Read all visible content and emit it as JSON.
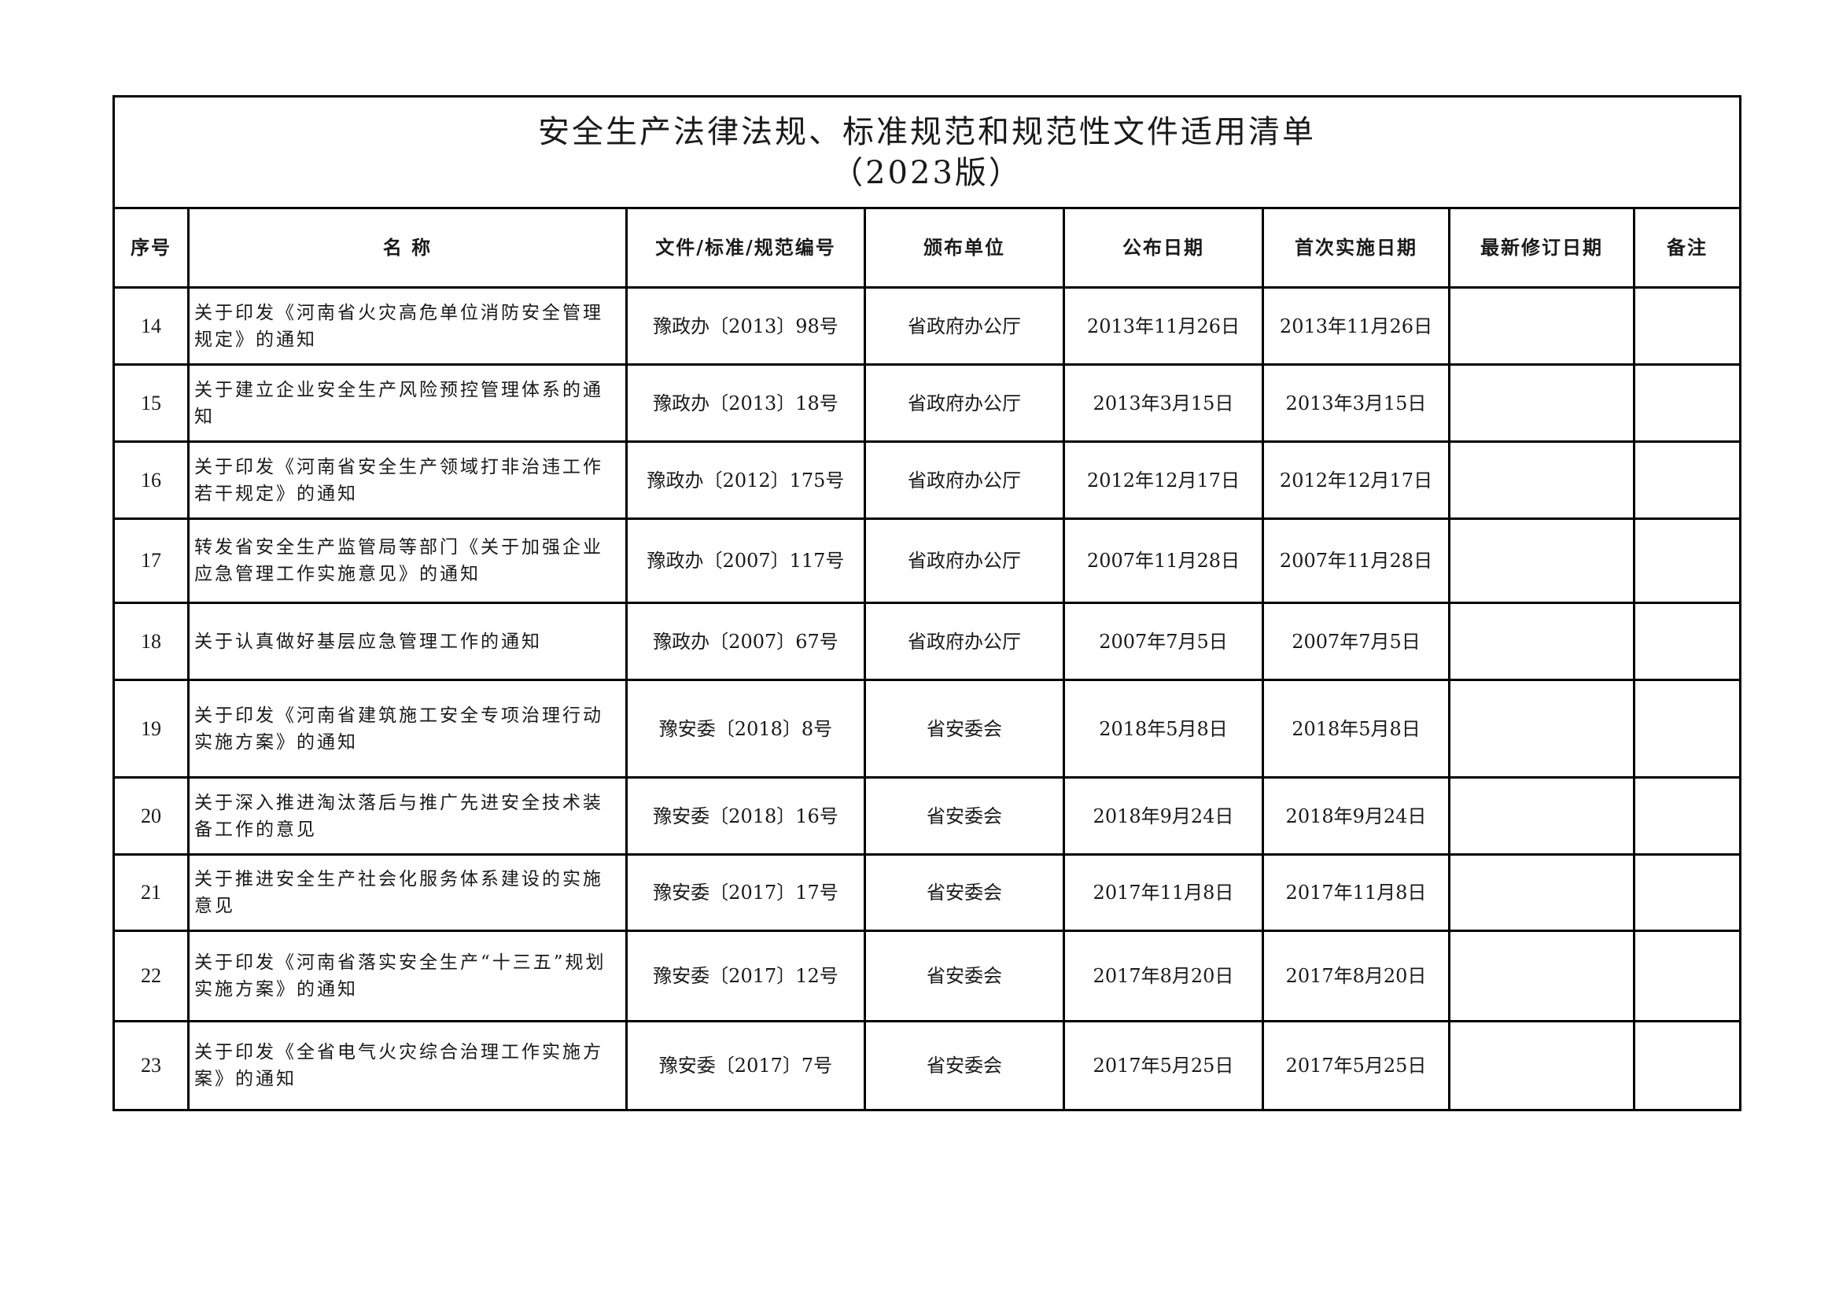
{
  "title": {
    "line1": "安全生产法律法规、标准规范和规范性文件适用清单",
    "line2": "（2023版）"
  },
  "columns": [
    "序号",
    "名 称",
    "文件/标准/规范编号",
    "颁布单位",
    "公布日期",
    "首次实施日期",
    "最新修订日期",
    "备注"
  ],
  "rows": [
    {
      "no": "14",
      "name": "关于印发《河南省火灾高危单位消防安全管理规定》的通知",
      "code": "豫政办〔2013〕98号",
      "issuer": "省政府办公厅",
      "published": "2013年11月26日",
      "effective": "2013年11月26日",
      "revised": "",
      "note": ""
    },
    {
      "no": "15",
      "name": "关于建立企业安全生产风险预控管理体系的通知",
      "code": "豫政办〔2013〕18号",
      "issuer": "省政府办公厅",
      "published": "2013年3月15日",
      "effective": "2013年3月15日",
      "revised": "",
      "note": ""
    },
    {
      "no": "16",
      "name": "关于印发《河南省安全生产领域打非治违工作若干规定》的通知",
      "code": "豫政办〔2012〕175号",
      "issuer": "省政府办公厅",
      "published": "2012年12月17日",
      "effective": "2012年12月17日",
      "revised": "",
      "note": ""
    },
    {
      "no": "17",
      "name": "转发省安全生产监管局等部门《关于加强企业应急管理工作实施意见》的通知",
      "code": "豫政办〔2007〕117号",
      "issuer": "省政府办公厅",
      "published": "2007年11月28日",
      "effective": "2007年11月28日",
      "revised": "",
      "note": ""
    },
    {
      "no": "18",
      "name": "关于认真做好基层应急管理工作的通知",
      "code": "豫政办〔2007〕67号",
      "issuer": "省政府办公厅",
      "published": "2007年7月5日",
      "effective": "2007年7月5日",
      "revised": "",
      "note": ""
    },
    {
      "no": "19",
      "name": "关于印发《河南省建筑施工安全专项治理行动实施方案》的通知",
      "code": "豫安委〔2018〕8号",
      "issuer": "省安委会",
      "published": "2018年5月8日",
      "effective": "2018年5月8日",
      "revised": "",
      "note": ""
    },
    {
      "no": "20",
      "name": "关于深入推进淘汰落后与推广先进安全技术装备工作的意见",
      "code": "豫安委〔2018〕16号",
      "issuer": "省安委会",
      "published": "2018年9月24日",
      "effective": "2018年9月24日",
      "revised": "",
      "note": ""
    },
    {
      "no": "21",
      "name": "关于推进安全生产社会化服务体系建设的实施意见",
      "code": "豫安委〔2017〕17号",
      "issuer": "省安委会",
      "published": "2017年11月8日",
      "effective": "2017年11月8日",
      "revised": "",
      "note": ""
    },
    {
      "no": "22",
      "name": "关于印发《河南省落实安全生产“十三五”规划实施方案》的通知",
      "code": "豫安委〔2017〕12号",
      "issuer": "省安委会",
      "published": "2017年8月20日",
      "effective": "2017年8月20日",
      "revised": "",
      "note": ""
    },
    {
      "no": "23",
      "name": "关于印发《全省电气火灾综合治理工作实施方案》的通知",
      "code": "豫安委〔2017〕7号",
      "issuer": "省安委会",
      "published": "2017年5月25日",
      "effective": "2017年5月25日",
      "revised": "",
      "note": ""
    }
  ]
}
